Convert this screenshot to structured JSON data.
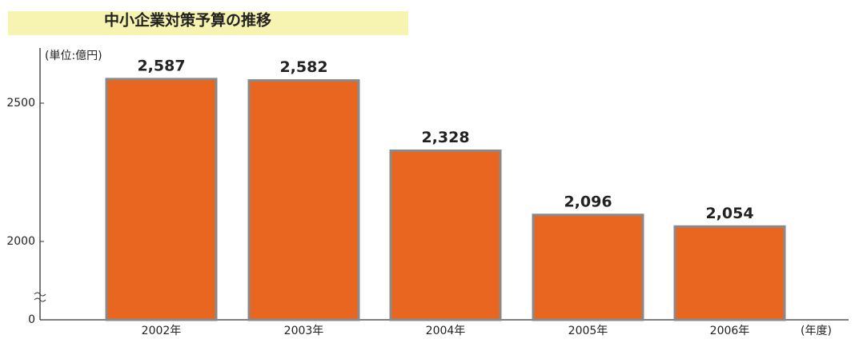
{
  "chart_data": {
    "type": "bar",
    "title": "中小企業対策予算の推移",
    "y_label": "(単位:億円)",
    "x_label": "(年度)",
    "categories": [
      "2002年",
      "2003年",
      "2004年",
      "2005年",
      "2006年"
    ],
    "values": [
      2587,
      2582,
      2328,
      2096,
      2054
    ],
    "value_labels": [
      "2,587",
      "2,582",
      "2,328",
      "2,096",
      "2,054"
    ],
    "color": "#e8661f",
    "ylim": [
      0,
      2700
    ],
    "yticks": [
      0,
      2000,
      2500
    ],
    "broken_axis": true
  }
}
